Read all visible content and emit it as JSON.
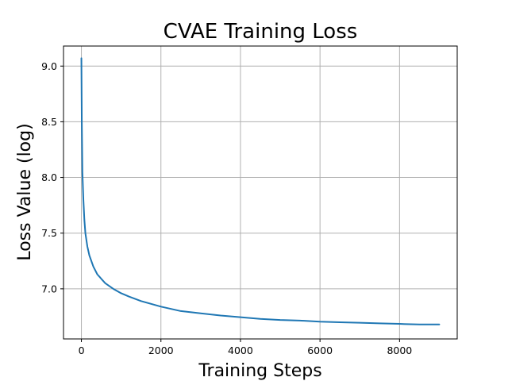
{
  "chart_data": {
    "type": "line",
    "title": "CVAE Training Loss",
    "xlabel": "Training Steps",
    "ylabel": "Loss Value (log)",
    "xlim": [
      -450,
      9450
    ],
    "ylim": [
      6.55,
      9.18
    ],
    "x_ticks": [
      0,
      2000,
      4000,
      6000,
      8000
    ],
    "y_ticks": [
      7.0,
      7.5,
      8.0,
      8.5,
      9.0
    ],
    "x_tick_labels": [
      "0",
      "2000",
      "4000",
      "6000",
      "8000"
    ],
    "y_tick_labels": [
      "7.0",
      "7.5",
      "8.0",
      "8.5",
      "9.0"
    ],
    "grid": true,
    "legend": "none",
    "series": [
      {
        "color": "#1f77b4",
        "x": [
          0,
          10,
          25,
          50,
          75,
          100,
          150,
          200,
          300,
          400,
          500,
          600,
          800,
          1000,
          1200,
          1500,
          2000,
          2500,
          3000,
          3500,
          4000,
          4500,
          5000,
          5500,
          6000,
          6500,
          7000,
          7500,
          8000,
          8500,
          9000
        ],
        "y": [
          9.07,
          8.5,
          8.05,
          7.8,
          7.62,
          7.5,
          7.38,
          7.3,
          7.2,
          7.13,
          7.09,
          7.05,
          7.0,
          6.96,
          6.93,
          6.89,
          6.84,
          6.8,
          6.78,
          6.76,
          6.745,
          6.73,
          6.72,
          6.715,
          6.705,
          6.7,
          6.695,
          6.69,
          6.685,
          6.68,
          6.68
        ]
      }
    ]
  }
}
